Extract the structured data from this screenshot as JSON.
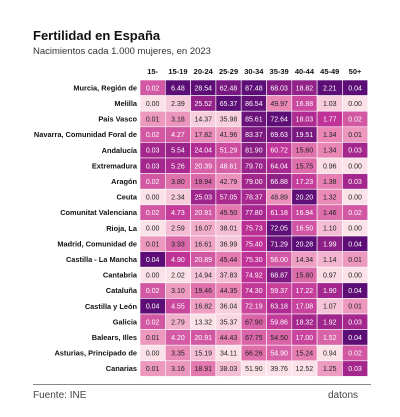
{
  "title": "Fertilidad en España",
  "subtitle": "Nacimientos cada 1.000 mujeres, en 2023",
  "source": "Fuente: INE",
  "brand": "datons",
  "chart_data": {
    "type": "heatmap",
    "title": "Fertilidad en España",
    "subtitle": "Nacimientos cada 1.000 mujeres, en 2023",
    "columns": [
      "15-",
      "15-19",
      "20-24",
      "25-29",
      "30-34",
      "35-39",
      "40-44",
      "45-49",
      "50+"
    ],
    "rows": [
      {
        "region": "Murcia, Región de",
        "values": [
          0.02,
          6.48,
          28.54,
          62.48,
          87.48,
          68.03,
          18.82,
          2.21,
          0.04
        ]
      },
      {
        "region": "Melilla",
        "values": [
          0.0,
          2.39,
          25.52,
          65.37,
          86.54,
          49.97,
          16.88,
          1.03,
          0.0
        ]
      },
      {
        "region": "País Vasco",
        "values": [
          0.01,
          3.18,
          14.37,
          35.98,
          85.61,
          72.64,
          18.03,
          1.77,
          0.02
        ]
      },
      {
        "region": "Navarra, Comunidad Foral de",
        "values": [
          0.02,
          4.27,
          17.82,
          41.96,
          83.37,
          69.63,
          19.51,
          1.34,
          0.01
        ]
      },
      {
        "region": "Andalucía",
        "values": [
          0.03,
          5.54,
          24.04,
          51.29,
          81.9,
          60.72,
          15.6,
          1.34,
          0.03
        ]
      },
      {
        "region": "Extremadura",
        "values": [
          0.03,
          5.26,
          20.39,
          48.61,
          79.7,
          64.04,
          15.75,
          0.96,
          0.0
        ]
      },
      {
        "region": "Aragón",
        "values": [
          0.02,
          3.8,
          19.94,
          42.79,
          79.0,
          66.88,
          17.23,
          1.38,
          0.03
        ]
      },
      {
        "region": "Ceuta",
        "values": [
          0.0,
          2.34,
          25.03,
          57.05,
          78.37,
          48.89,
          20.2,
          1.32,
          0.0
        ]
      },
      {
        "region": "Comunitat Valenciana",
        "values": [
          0.02,
          4.73,
          20.91,
          45.5,
          77.8,
          61.18,
          16.94,
          1.46,
          0.02
        ]
      },
      {
        "region": "Rioja, La",
        "values": [
          0.0,
          2.59,
          16.07,
          38.01,
          75.73,
          72.05,
          16.5,
          1.1,
          0.0
        ]
      },
      {
        "region": "Madrid, Comunidad de",
        "values": [
          0.01,
          3.93,
          16.61,
          36.99,
          75.4,
          71.29,
          20.28,
          1.99,
          0.04
        ]
      },
      {
        "region": "Castilla - La Mancha",
        "values": [
          0.04,
          4.9,
          20.89,
          45.44,
          75.3,
          56.0,
          14.34,
          1.14,
          0.01
        ]
      },
      {
        "region": "Cantabria",
        "values": [
          0.0,
          2.02,
          14.94,
          37.83,
          74.92,
          68.87,
          15.8,
          0.97,
          0.0
        ]
      },
      {
        "region": "Cataluña",
        "values": [
          0.02,
          3.1,
          19.46,
          44.35,
          74.3,
          59.37,
          17.22,
          1.9,
          0.04
        ]
      },
      {
        "region": "Castilla y León",
        "values": [
          0.04,
          4.55,
          16.82,
          36.04,
          72.19,
          63.18,
          17.08,
          1.07,
          0.01
        ]
      },
      {
        "region": "Galicia",
        "values": [
          0.02,
          2.79,
          13.32,
          35.37,
          67.9,
          59.86,
          18.32,
          1.92,
          0.03
        ]
      },
      {
        "region": "Balears, Illes",
        "values": [
          0.01,
          4.2,
          20.91,
          44.43,
          67.75,
          54.5,
          17.0,
          1.52,
          0.04
        ]
      },
      {
        "region": "Asturias, Principado de",
        "values": [
          0.0,
          3.35,
          15.19,
          34.11,
          66.26,
          54.9,
          15.24,
          0.94,
          0.02
        ]
      },
      {
        "region": "Canarias",
        "values": [
          0.01,
          3.16,
          18.91,
          38.03,
          51.9,
          39.76,
          12.52,
          1.25,
          0.03
        ]
      }
    ]
  }
}
